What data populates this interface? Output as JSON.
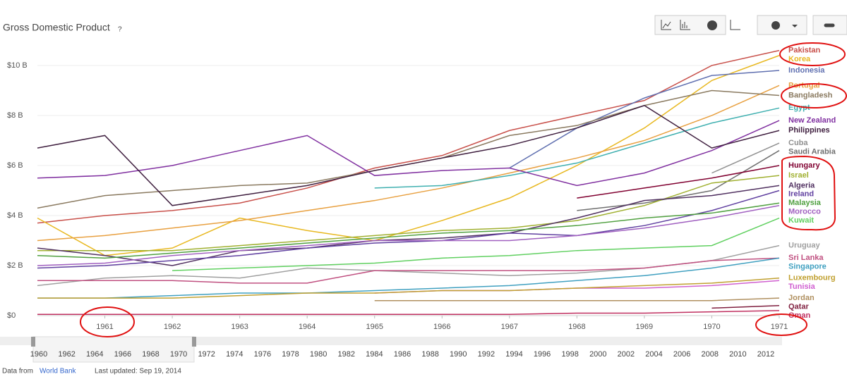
{
  "header": {
    "title": "Gross Domestic Product",
    "help": "?"
  },
  "chart_data": {
    "type": "line",
    "x": [
      1960,
      1961,
      1962,
      1963,
      1964,
      1965,
      1966,
      1967,
      1968,
      1969,
      1970,
      1971
    ],
    "xlim": [
      1960,
      1971
    ],
    "xticks": [
      1961,
      1962,
      1963,
      1964,
      1965,
      1966,
      1967,
      1968,
      1969,
      1970,
      1971
    ],
    "ylim": [
      0,
      10.9
    ],
    "yticks": [
      {
        "value": 0,
        "label": "$0"
      },
      {
        "value": 2,
        "label": "$2 B"
      },
      {
        "value": 4,
        "label": "$4 B"
      },
      {
        "value": 6,
        "label": "$6 B"
      },
      {
        "value": 8,
        "label": "$8 B"
      },
      {
        "value": 10,
        "label": "$10 B"
      }
    ],
    "grid": true,
    "series": [
      {
        "name": "Pakistan",
        "color": "#c8504a",
        "values": [
          3.7,
          4.0,
          4.2,
          4.5,
          5.1,
          5.9,
          6.4,
          7.4,
          8.0,
          8.6,
          10.0,
          10.6
        ]
      },
      {
        "name": "Korea",
        "color": "#e8b820",
        "values": [
          3.9,
          2.4,
          2.7,
          3.9,
          3.4,
          3.0,
          3.8,
          4.7,
          6.0,
          7.5,
          9.4,
          10.4
        ]
      },
      {
        "name": "Indonesia",
        "color": "#6070b0",
        "values": [
          null,
          null,
          null,
          null,
          null,
          null,
          null,
          5.9,
          7.5,
          8.7,
          9.6,
          9.8
        ]
      },
      {
        "name": "Portugal",
        "color": "#e8a040",
        "values": [
          3.0,
          3.2,
          3.5,
          3.8,
          4.2,
          4.6,
          5.1,
          5.7,
          6.3,
          7.0,
          8.0,
          9.2
        ]
      },
      {
        "name": "Bangladesh",
        "color": "#8a7a60",
        "values": [
          4.3,
          4.8,
          5.0,
          5.2,
          5.3,
          5.8,
          6.3,
          7.2,
          7.6,
          8.4,
          9.0,
          8.8
        ]
      },
      {
        "name": "Egypt",
        "color": "#40b0b0",
        "values": [
          null,
          null,
          null,
          null,
          null,
          5.1,
          5.2,
          5.6,
          6.1,
          6.9,
          7.7,
          8.3
        ]
      },
      {
        "name": "New Zealand",
        "color": "#8030a0",
        "values": [
          5.5,
          5.6,
          6.0,
          6.6,
          7.2,
          5.6,
          5.8,
          5.9,
          5.2,
          5.7,
          6.6,
          7.8
        ]
      },
      {
        "name": "Philippines",
        "color": "#402040",
        "values": [
          6.7,
          7.2,
          4.4,
          4.8,
          5.2,
          5.8,
          6.3,
          6.8,
          7.5,
          8.4,
          6.7,
          7.4
        ]
      },
      {
        "name": "Cuba",
        "color": "#909090",
        "values": [
          null,
          null,
          null,
          null,
          null,
          null,
          null,
          null,
          null,
          null,
          5.7,
          6.9
        ]
      },
      {
        "name": "Saudi Arabia",
        "color": "#707070",
        "values": [
          null,
          null,
          null,
          null,
          null,
          null,
          null,
          null,
          4.2,
          4.5,
          5.0,
          6.6
        ]
      },
      {
        "name": "Hungary",
        "color": "#800030",
        "values": [
          null,
          null,
          null,
          null,
          null,
          null,
          null,
          null,
          4.7,
          5.1,
          5.5,
          6.0
        ]
      },
      {
        "name": "Israel",
        "color": "#a0b030",
        "values": [
          2.6,
          2.6,
          2.6,
          2.8,
          3.0,
          3.2,
          3.4,
          3.5,
          3.8,
          4.4,
          5.3,
          5.6
        ]
      },
      {
        "name": "Algeria",
        "color": "#503060",
        "values": [
          2.7,
          2.4,
          2.0,
          2.6,
          2.7,
          3.0,
          3.1,
          3.3,
          3.9,
          4.6,
          4.8,
          5.2
        ]
      },
      {
        "name": "Ireland",
        "color": "#6040a0",
        "values": [
          1.9,
          2.0,
          2.2,
          2.4,
          2.7,
          2.9,
          3.0,
          3.3,
          3.2,
          3.6,
          4.2,
          5.0
        ]
      },
      {
        "name": "Malaysia",
        "color": "#50a040",
        "values": [
          2.4,
          2.3,
          2.5,
          2.7,
          2.9,
          3.1,
          3.3,
          3.4,
          3.6,
          3.9,
          4.1,
          4.5
        ]
      },
      {
        "name": "Morocco",
        "color": "#a060c0",
        "values": [
          2.0,
          2.1,
          2.4,
          2.6,
          2.8,
          3.0,
          3.0,
          3.0,
          3.2,
          3.5,
          3.9,
          4.4
        ]
      },
      {
        "name": "Kuwait",
        "color": "#60d060",
        "values": [
          null,
          null,
          1.8,
          1.9,
          2.0,
          2.1,
          2.3,
          2.4,
          2.6,
          2.7,
          2.8,
          3.9
        ]
      },
      {
        "name": "Uruguay",
        "color": "#a0a0a0",
        "values": [
          1.2,
          1.5,
          1.6,
          1.5,
          1.9,
          1.8,
          1.7,
          1.6,
          1.7,
          1.9,
          2.2,
          2.8
        ]
      },
      {
        "name": "Sri Lanka",
        "color": "#c05080",
        "values": [
          1.4,
          1.4,
          1.4,
          1.3,
          1.3,
          1.8,
          1.8,
          1.8,
          1.8,
          1.9,
          2.2,
          2.3
        ]
      },
      {
        "name": "Singapore",
        "color": "#40a0c0",
        "values": [
          0.7,
          0.7,
          0.8,
          0.9,
          0.9,
          1.0,
          1.1,
          1.2,
          1.4,
          1.6,
          1.9,
          2.3
        ]
      },
      {
        "name": "Tunisia",
        "color": "#d060d0",
        "values": [
          null,
          null,
          null,
          null,
          null,
          0.9,
          1.0,
          1.0,
          1.1,
          1.1,
          1.2,
          1.4
        ]
      },
      {
        "name": "Luxembourg",
        "color": "#c0a030",
        "values": [
          0.7,
          0.7,
          0.7,
          0.8,
          0.9,
          0.9,
          1.0,
          1.0,
          1.1,
          1.2,
          1.3,
          1.5
        ]
      },
      {
        "name": "Jordan",
        "color": "#b09060",
        "values": [
          null,
          null,
          null,
          null,
          null,
          0.6,
          0.6,
          0.6,
          0.6,
          0.6,
          0.6,
          0.7
        ]
      },
      {
        "name": "Qatar",
        "color": "#802040",
        "values": [
          null,
          null,
          null,
          null,
          null,
          null,
          null,
          null,
          null,
          null,
          0.3,
          0.4
        ]
      },
      {
        "name": "Oman",
        "color": "#c03060",
        "values": [
          0.05,
          0.05,
          0.05,
          0.05,
          0.05,
          0.05,
          0.05,
          0.05,
          0.1,
          0.1,
          0.15,
          0.2
        ]
      }
    ]
  },
  "timeline": [
    1960,
    1962,
    1964,
    1966,
    1968,
    1970,
    1972,
    1974,
    1976,
    1978,
    1980,
    1982,
    1984,
    1986,
    1988,
    1990,
    1992,
    1994,
    1996,
    1998,
    2000,
    2002,
    2004,
    2006,
    2008,
    2010,
    2012
  ],
  "footer": {
    "source_prefix": "Data from",
    "source": "World Bank",
    "updated": "Last updated: Sep 19, 2014"
  }
}
